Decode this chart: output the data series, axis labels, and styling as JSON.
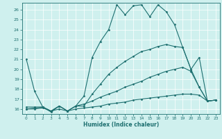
{
  "xlabel": "Humidex (Indice chaleur)",
  "xlim": [
    -0.5,
    23.5
  ],
  "ylim": [
    15.5,
    26.7
  ],
  "yticks": [
    16,
    17,
    18,
    19,
    20,
    21,
    22,
    23,
    24,
    25,
    26
  ],
  "xticks": [
    0,
    1,
    2,
    3,
    4,
    5,
    6,
    7,
    8,
    9,
    10,
    11,
    12,
    13,
    14,
    15,
    16,
    17,
    18,
    19,
    20,
    21,
    22,
    23
  ],
  "bg_color": "#cff0ee",
  "line_color": "#1e7070",
  "series": [
    {
      "x": [
        0,
        1,
        2,
        3,
        4,
        5,
        6,
        7,
        8,
        9,
        10,
        11,
        12,
        13,
        14,
        15,
        16,
        17,
        18,
        19,
        20,
        21,
        22,
        23
      ],
      "y": [
        21.0,
        17.8,
        16.2,
        15.7,
        16.3,
        15.8,
        16.3,
        17.3,
        21.2,
        22.8,
        24.0,
        26.5,
        25.5,
        26.4,
        26.5,
        25.3,
        26.5,
        25.8,
        24.5,
        22.2,
        20.0,
        18.2,
        16.8,
        16.9
      ]
    },
    {
      "x": [
        0,
        1,
        2,
        3,
        4,
        5,
        6,
        7,
        8,
        9,
        10,
        11,
        12,
        13,
        14,
        15,
        16,
        17,
        18,
        19,
        20,
        21,
        22,
        23
      ],
      "y": [
        16.2,
        16.2,
        16.2,
        15.8,
        16.3,
        15.8,
        16.3,
        16.3,
        17.5,
        18.5,
        19.5,
        20.2,
        20.8,
        21.3,
        21.8,
        22.0,
        22.3,
        22.5,
        22.3,
        22.2,
        20.0,
        21.2,
        16.8,
        16.9
      ]
    },
    {
      "x": [
        0,
        1,
        2,
        3,
        4,
        5,
        6,
        7,
        8,
        9,
        10,
        11,
        12,
        13,
        14,
        15,
        16,
        17,
        18,
        19,
        20,
        21,
        22,
        23
      ],
      "y": [
        16.0,
        16.1,
        16.2,
        15.8,
        16.3,
        15.8,
        16.3,
        16.5,
        16.8,
        17.2,
        17.5,
        17.8,
        18.2,
        18.5,
        18.8,
        19.2,
        19.5,
        19.8,
        20.0,
        20.2,
        19.8,
        18.2,
        16.8,
        16.9
      ]
    },
    {
      "x": [
        0,
        1,
        2,
        3,
        4,
        5,
        6,
        7,
        8,
        9,
        10,
        11,
        12,
        13,
        14,
        15,
        16,
        17,
        18,
        19,
        20,
        21,
        22,
        23
      ],
      "y": [
        16.0,
        16.0,
        16.1,
        15.8,
        16.0,
        15.8,
        16.0,
        16.1,
        16.2,
        16.3,
        16.5,
        16.6,
        16.7,
        16.9,
        17.0,
        17.1,
        17.2,
        17.3,
        17.4,
        17.5,
        17.5,
        17.4,
        16.8,
        16.9
      ]
    }
  ]
}
